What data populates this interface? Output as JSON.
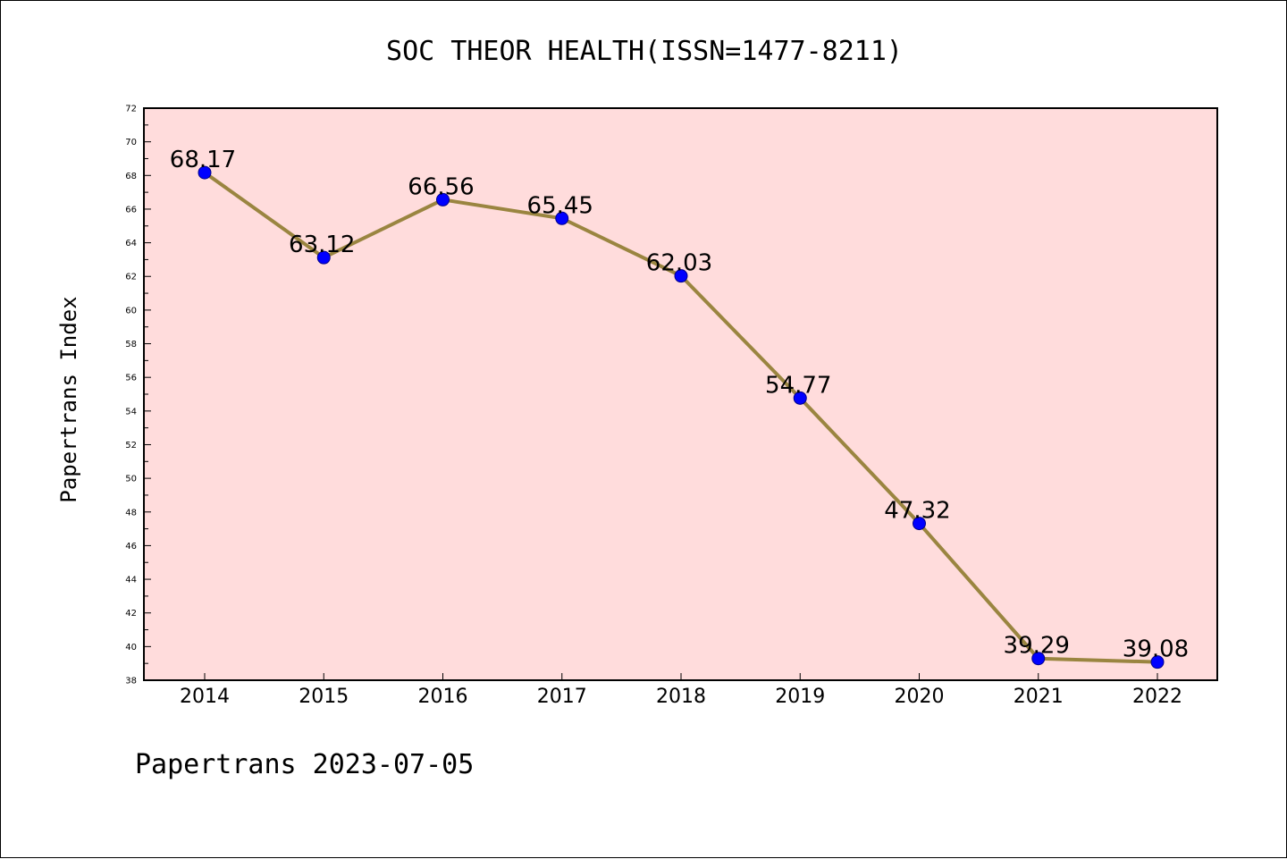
{
  "chart_data": {
    "type": "line",
    "title": "SOC THEOR HEALTH(ISSN=1477-8211)",
    "ylabel": "Papertrans Index",
    "xlabel": "",
    "footer": "Papertrans 2023-07-05",
    "categories": [
      "2014",
      "2015",
      "2016",
      "2017",
      "2018",
      "2019",
      "2020",
      "2021",
      "2022"
    ],
    "series": [
      {
        "values": [
          68.17,
          63.12,
          66.56,
          65.45,
          62.03,
          54.77,
          47.32,
          39.29,
          39.08
        ],
        "labels": [
          "68.17",
          "63.12",
          "66.56",
          "65.45",
          "62.03",
          "54.77",
          "47.32",
          "39.29",
          "39.08"
        ]
      }
    ],
    "ylim": [
      38,
      72
    ],
    "yticks": [
      "38",
      "40",
      "42",
      "44",
      "46",
      "48",
      "50",
      "52",
      "54",
      "56",
      "58",
      "60",
      "62",
      "64",
      "66",
      "68",
      "70",
      "72"
    ],
    "grid": false,
    "colors": {
      "plot_background": "#ffdcdc",
      "line": "#9a8540",
      "marker": "#0000ff",
      "marker_edge": "#00008b"
    }
  }
}
